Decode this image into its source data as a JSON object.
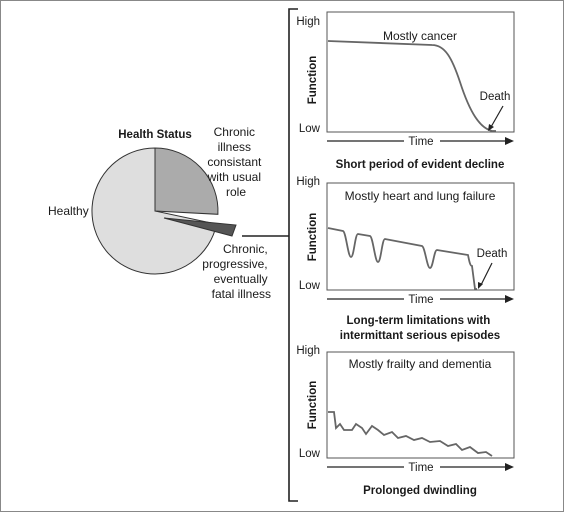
{
  "pie": {
    "title": "Health Status",
    "healthy": "Healthy",
    "chronic_usual": [
      "Chronic",
      "illness",
      "consistant",
      "with usual",
      "role"
    ],
    "chronic_fatal": [
      "Chronic,",
      "progressive,",
      "eventually",
      "fatal illness"
    ]
  },
  "panels": [
    {
      "y_high": "High",
      "y_low": "Low",
      "y_title": "Function",
      "x_title": "Time",
      "note": "Mostly cancer",
      "death": "Death",
      "caption": [
        "Short period of evident decline"
      ]
    },
    {
      "y_high": "High",
      "y_low": "Low",
      "y_title": "Function",
      "x_title": "Time",
      "note": "Mostly heart and lung failure",
      "death": "Death",
      "caption": [
        "Long-term limitations with",
        "intermittant serious episodes"
      ]
    },
    {
      "y_high": "High",
      "y_low": "Low",
      "y_title": "Function",
      "x_title": "Time",
      "note": "Mostly frailty and dementia",
      "caption": [
        "Prolonged dwindling"
      ]
    }
  ],
  "colors": {
    "healthy_fill": "#dedede",
    "chronic_fill": "#ababab",
    "fatal_fill": "#555555",
    "line": "#222222",
    "trajectory": "#666666"
  }
}
